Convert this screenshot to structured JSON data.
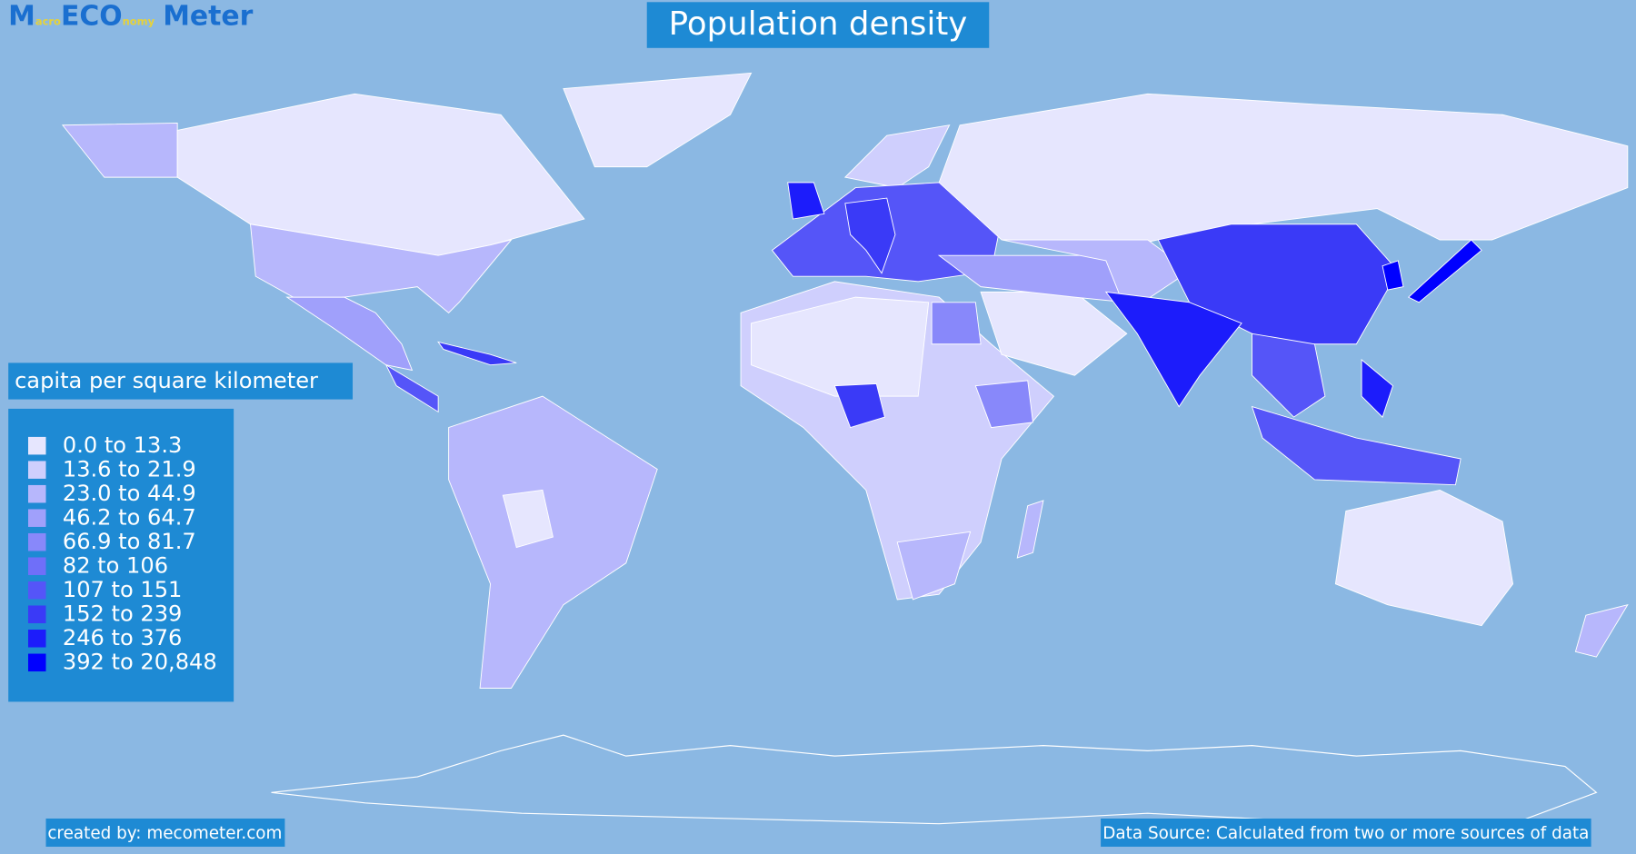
{
  "header": {
    "logo": {
      "parts": [
        "M",
        "acro",
        "ECO",
        "nomy",
        "Meter"
      ]
    },
    "title": "Population density"
  },
  "legend": {
    "title": "capita per square kilometer",
    "items": [
      {
        "label": "0.0 to 13.3",
        "color": "#e6e6fe"
      },
      {
        "label": "13.6 to 21.9",
        "color": "#cfcffd"
      },
      {
        "label": "23.0 to 44.9",
        "color": "#b7b7fc"
      },
      {
        "label": "46.2 to 64.7",
        "color": "#a0a0fb"
      },
      {
        "label": "66.9 to 81.7",
        "color": "#8888fa"
      },
      {
        "label": "82 to 106",
        "color": "#6f6ff9"
      },
      {
        "label": "107 to 151",
        "color": "#5555f8"
      },
      {
        "label": "152 to 239",
        "color": "#3a3af7"
      },
      {
        "label": "246 to 376",
        "color": "#1c1cfb"
      },
      {
        "label": "392 to 20,848",
        "color": "#0000ff"
      }
    ]
  },
  "footer": {
    "credit": "created by: mecometer.com",
    "source": "Data Source: Calculated from two or more sources of data"
  }
}
